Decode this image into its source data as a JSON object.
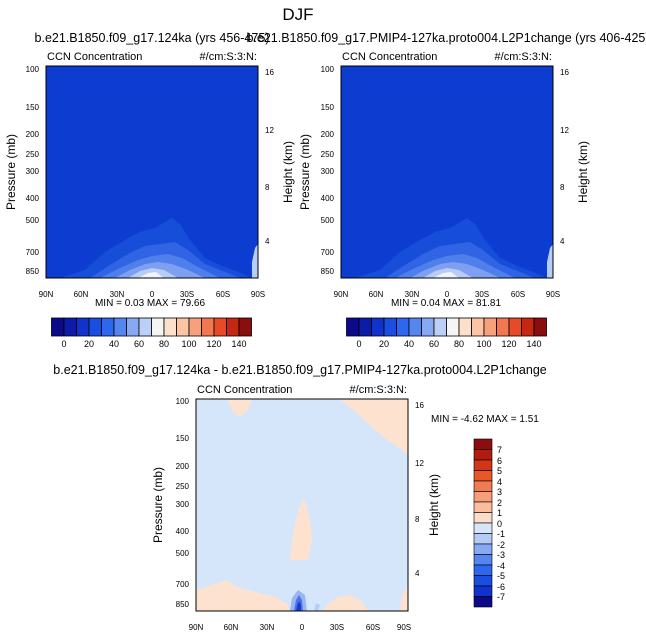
{
  "page_title": "DJF",
  "chart_data": [
    {
      "type": "contour",
      "title": "b.e21.B1850.f09_g17.124ka (yrs 456-475)",
      "left_label": "CCN Concentration",
      "right_label": "#/cm:S:3:N:",
      "ylabel": "Pressure (mb)",
      "y2label": "Height (km)",
      "x_ticks": [
        "90N",
        "60N",
        "30N",
        "0",
        "30S",
        "60S",
        "90S"
      ],
      "x_range": [
        90,
        -90
      ],
      "y_ticks": [
        100,
        150,
        200,
        250,
        300,
        400,
        500,
        700,
        850
      ],
      "y_range": [
        100,
        1000
      ],
      "y2_ticks": [
        16,
        12,
        8,
        4
      ],
      "min_label": "MIN =  0.03  MAX =  79.66",
      "min": 0.03,
      "max": 79.66
    },
    {
      "type": "contour",
      "title": "b.e21.B1850.f09_g17.PMIP4-127ka.proto004.L2P1change (yrs 406-425)",
      "left_label": "CCN Concentration",
      "right_label": "#/cm:S:3:N:",
      "ylabel": "Pressure (mb)",
      "y2label": "Height (km)",
      "x_ticks": [
        "90N",
        "60N",
        "30N",
        "0",
        "30S",
        "60S",
        "90S"
      ],
      "x_range": [
        90,
        -90
      ],
      "y_ticks": [
        100,
        150,
        200,
        250,
        300,
        400,
        500,
        700,
        850
      ],
      "y_range": [
        100,
        1000
      ],
      "y2_ticks": [
        16,
        12,
        8,
        4
      ],
      "min_label": "MIN =  0.04  MAX =  81.81",
      "min": 0.04,
      "max": 81.81
    },
    {
      "type": "contour",
      "title": "b.e21.B1850.f09_g17.124ka - b.e21.B1850.f09_g17.PMIP4-127ka.proto004.L2P1change",
      "left_label": "CCN Concentration",
      "right_label": "#/cm:S:3:N:",
      "ylabel": "Pressure (mb)",
      "y2label": "Height (km)",
      "x_ticks": [
        "90N",
        "60N",
        "30N",
        "0",
        "30S",
        "60S",
        "90S"
      ],
      "x_range": [
        90,
        -90
      ],
      "y_ticks": [
        100,
        150,
        200,
        250,
        300,
        400,
        500,
        700,
        850
      ],
      "y_range": [
        100,
        1000
      ],
      "y2_ticks": [
        16,
        12,
        8,
        4
      ],
      "min_label": "MIN =  -4.62   MAX =   1.51",
      "min": -4.62,
      "max": 1.51
    }
  ],
  "colorbar_top": {
    "labels": [
      "0",
      "20",
      "40",
      "60",
      "80",
      "100",
      "120",
      "140"
    ],
    "colors": [
      "#0a0a8a",
      "#0d1ca6",
      "#0f33cc",
      "#1a4ee0",
      "#2f66ee",
      "#5585ef",
      "#87a9f3",
      "#bcd0f7",
      "#f5f5f5",
      "#fde0cc",
      "#fbc4a4",
      "#f7a07c",
      "#f17850",
      "#e64a28",
      "#c42812",
      "#8b0e0e"
    ]
  },
  "colorbar_diff": {
    "labels": [
      "7",
      "6",
      "5",
      "4",
      "3",
      "2",
      "1",
      "0",
      "-1",
      "-2",
      "-3",
      "-4",
      "-5",
      "-6",
      "-7"
    ],
    "colors": [
      "#8b0e0e",
      "#b21c10",
      "#d23618",
      "#e65828",
      "#f17a52",
      "#f79d7a",
      "#fbbd9e",
      "#fdddc8",
      "#d6e6fa",
      "#b4cbf5",
      "#87a9f3",
      "#5585ef",
      "#2f66ee",
      "#1a4ee0",
      "#0f33cc",
      "#0a0a8a"
    ]
  }
}
